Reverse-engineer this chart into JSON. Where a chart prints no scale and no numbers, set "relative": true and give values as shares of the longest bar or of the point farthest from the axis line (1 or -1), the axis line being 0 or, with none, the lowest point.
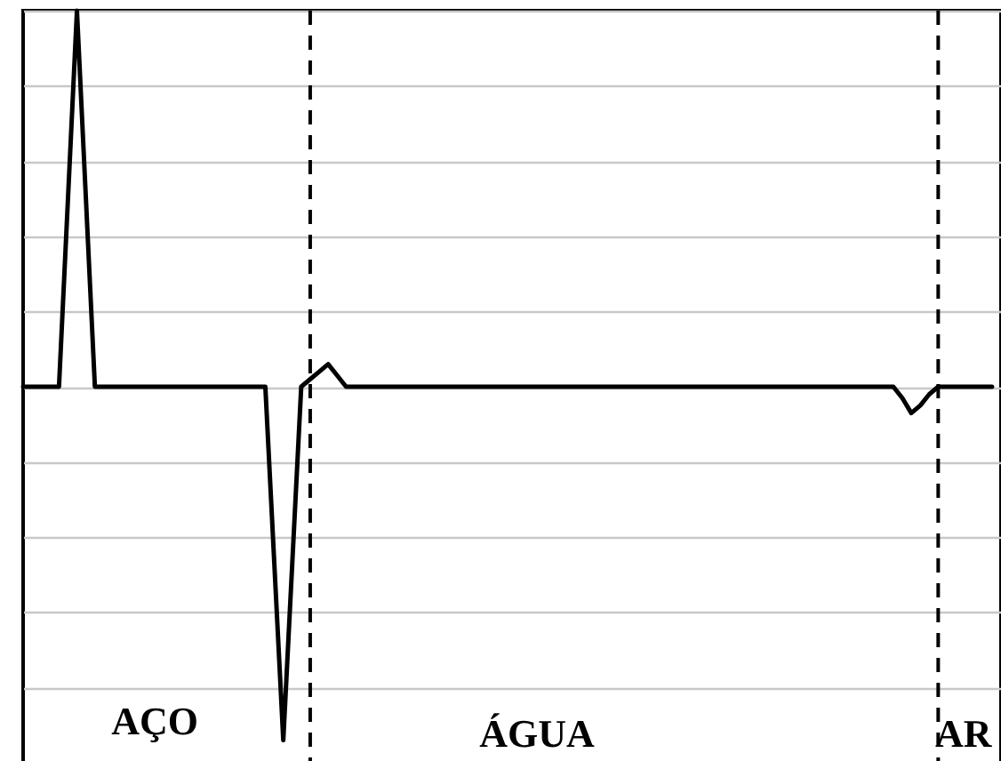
{
  "chart_data": {
    "type": "line",
    "relative": true,
    "categories": [
      null,
      null,
      null,
      null,
      null,
      null,
      null,
      null,
      null,
      null,
      null,
      null,
      null,
      null,
      null,
      null,
      null,
      null,
      null,
      null,
      null,
      null,
      null,
      null,
      null,
      null,
      null,
      null,
      null,
      null,
      null,
      null,
      null,
      null,
      null,
      null,
      null,
      null,
      null,
      null,
      null,
      null,
      null,
      null,
      null,
      null,
      null,
      null,
      null,
      null,
      null,
      null,
      null,
      null,
      null,
      null,
      null,
      null,
      null,
      null,
      null,
      null,
      null,
      null,
      null,
      null,
      null,
      null,
      null,
      null,
      null,
      null,
      null,
      null,
      null,
      null,
      null,
      null,
      null,
      null,
      null,
      null,
      null,
      null,
      null,
      null,
      null,
      null,
      null,
      null,
      null,
      null,
      null,
      null,
      null,
      null,
      null,
      null,
      null,
      null,
      null,
      null,
      null,
      null,
      null,
      null,
      null,
      null,
      null,
      null
    ],
    "series": [
      {
        "color": "#000000",
        "values": [
          0,
          0,
          0,
          0,
          0,
          0.5,
          1,
          0.5,
          0,
          0,
          0,
          0,
          0,
          0,
          0,
          0,
          0,
          0,
          0,
          0,
          0,
          0,
          0,
          0,
          0,
          0,
          0,
          0,
          -0.47,
          -0.94,
          -0.47,
          0,
          0.02,
          0.04,
          0.06,
          0.03,
          0,
          0,
          0,
          0,
          0,
          0,
          0,
          0,
          0,
          0,
          0,
          0,
          0,
          0,
          0,
          0,
          0,
          0,
          0,
          0,
          0,
          0,
          0,
          0,
          0,
          0,
          0,
          0,
          0,
          0,
          0,
          0,
          0,
          0,
          0,
          0,
          0,
          0,
          0,
          0,
          0,
          0,
          0,
          0,
          0,
          0,
          0,
          0,
          0,
          0,
          0,
          0,
          0,
          0,
          0,
          0,
          0,
          0,
          0,
          0,
          0,
          0,
          -0.03,
          -0.07,
          -0.05,
          -0.02,
          0,
          0,
          0,
          0,
          0,
          0,
          0,
          null
        ]
      }
    ],
    "annotations": [
      "AÇO",
      "ÁGUA",
      "AR"
    ],
    "grid": "y",
    "line_style": "solid",
    "marker": "none",
    "tick_labels": false
  }
}
